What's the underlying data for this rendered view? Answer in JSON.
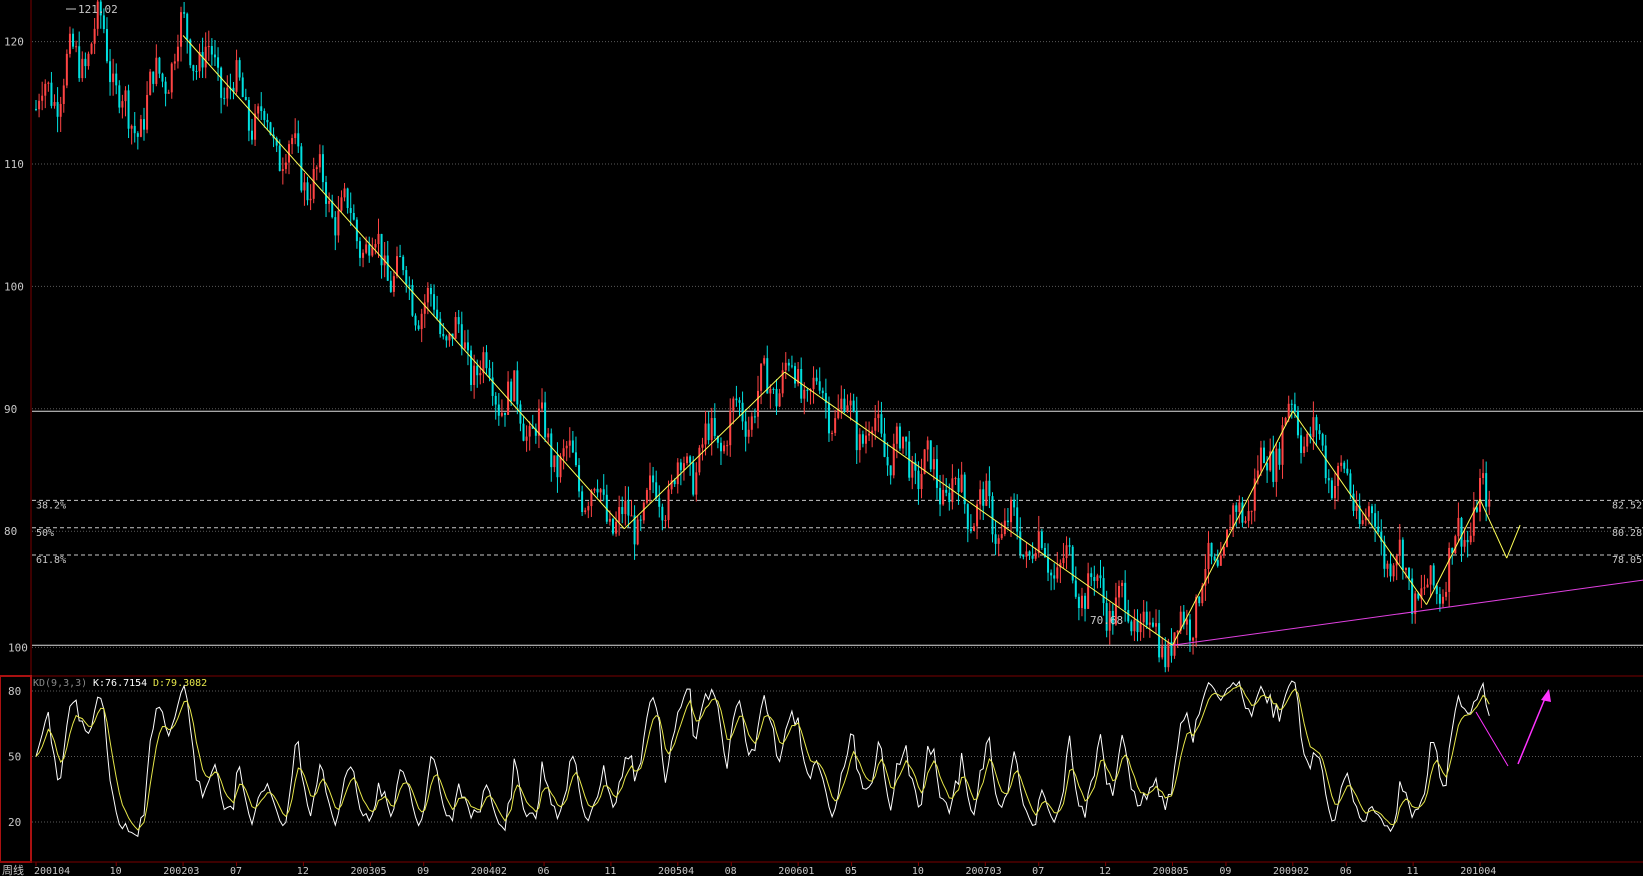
{
  "colors": {
    "background": "#000000",
    "grid": "#5a5a5a",
    "axis": "#7a0000",
    "up_candle": "#ff4444",
    "down_candle": "#00e0e0",
    "k_line": "#ffffff",
    "d_line": "#e6e64a",
    "trendline": "#ffff55",
    "support_line": "#e040e0",
    "fib_line": "#c8c8c8",
    "label": "#c8c8c8",
    "arrow": "#ff33ff"
  },
  "price_panel": {
    "ylim": [
      68,
      123
    ],
    "y_ticks": [
      "120",
      "110",
      "100",
      "90",
      "80"
    ],
    "max_label": "121.02",
    "min_label": "70.68",
    "fib_levels": [
      {
        "pct": "38.2%",
        "value": "82.52"
      },
      {
        "pct": "50%",
        "value": "80.28"
      },
      {
        "pct": "61.8%",
        "value": "78.05"
      }
    ]
  },
  "kd_panel": {
    "indicator_label": "KD(9,3,3)",
    "k_label": "K:76.7154",
    "d_label": "D:79.3082",
    "ylim": [
      0,
      100
    ],
    "y_ticks": [
      "100",
      "80",
      "50",
      "20"
    ]
  },
  "x_axis": {
    "corner_label": "周线",
    "ticks": [
      "200104",
      "10",
      "200203",
      "07",
      "12",
      "200305",
      "09",
      "200402",
      "06",
      "11",
      "200504",
      "08",
      "200601",
      "05",
      "10",
      "200703",
      "07",
      "12",
      "200805",
      "09",
      "200902",
      "06",
      "11",
      "201004"
    ]
  },
  "chart_data": {
    "type": "candlestick",
    "title": "",
    "periodicity": "weekly",
    "x_range": [
      "2001-04",
      "2010-04"
    ],
    "y_range": [
      68,
      123
    ],
    "grid": true,
    "extremes": {
      "max": 121.02,
      "min": 70.68
    },
    "swing_points": [
      {
        "date": "2002-03",
        "value": 120.5
      },
      {
        "date": "2004-12",
        "value": 80.2
      },
      {
        "date": "2005-12",
        "value": 93.0
      },
      {
        "date": "2008-05",
        "value": 70.68
      },
      {
        "date": "2009-02",
        "value": 89.8
      },
      {
        "date": "2009-12",
        "value": 74.0
      },
      {
        "date": "2010-04",
        "value": 82.6
      },
      {
        "date": "2010-06",
        "value": 77.8
      },
      {
        "date": "2010-07",
        "value": 80.5
      }
    ],
    "horizontal_levels": [
      89.8,
      70.68
    ],
    "fibonacci": [
      {
        "ratio": "38.2%",
        "value": 82.52
      },
      {
        "ratio": "50%",
        "value": 80.28
      },
      {
        "ratio": "61.8%",
        "value": 78.05
      }
    ],
    "support_line": {
      "from": {
        "date": "2008-05",
        "value": 70.68
      },
      "to": {
        "date": "2010-08",
        "value": 76.0
      }
    },
    "kd": {
      "params": "9,3,3",
      "last_k": 76.7154,
      "last_d": 79.3082,
      "range": [
        0,
        100
      ]
    }
  }
}
